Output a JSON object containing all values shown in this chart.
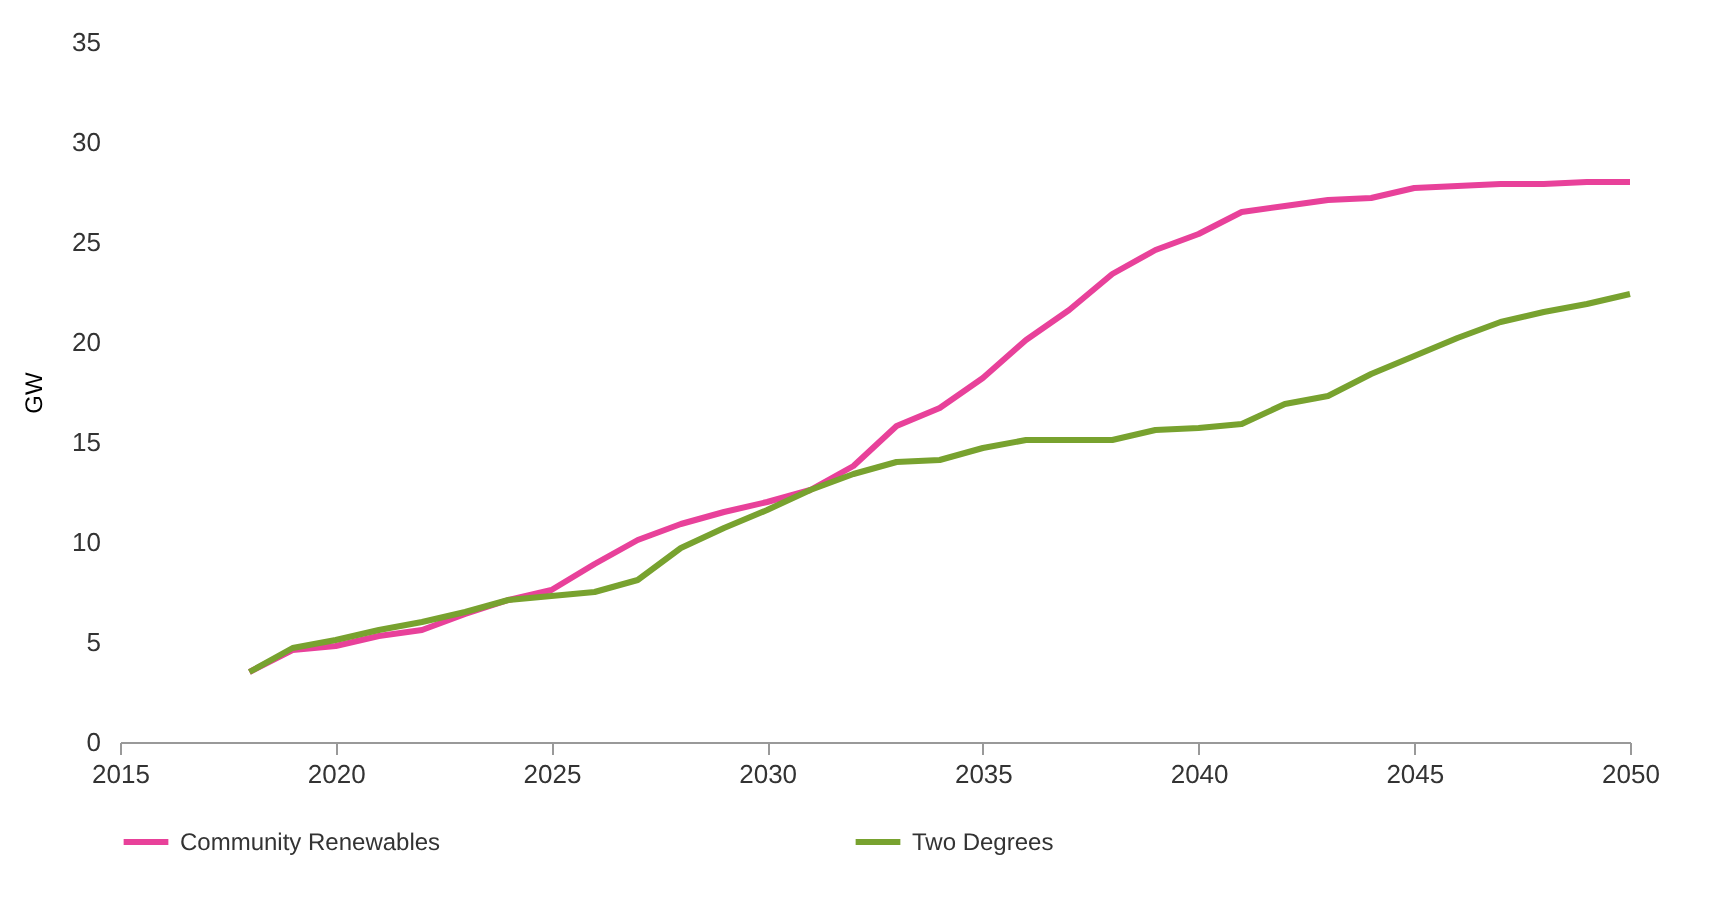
{
  "chart_data": {
    "type": "line",
    "ylabel": "GW",
    "x": [
      2018,
      2019,
      2020,
      2021,
      2022,
      2023,
      2024,
      2025,
      2026,
      2027,
      2028,
      2029,
      2030,
      2031,
      2032,
      2033,
      2034,
      2035,
      2036,
      2037,
      2038,
      2039,
      2040,
      2041,
      2042,
      2043,
      2044,
      2045,
      2046,
      2047,
      2048,
      2049,
      2050
    ],
    "series": [
      {
        "name": "Community Renewables",
        "color": "#e8419a",
        "values": [
          3.5,
          4.6,
          4.8,
          5.3,
          5.6,
          6.4,
          7.1,
          7.6,
          8.9,
          10.1,
          10.9,
          11.5,
          12.0,
          12.6,
          13.8,
          15.8,
          16.7,
          18.2,
          20.1,
          21.6,
          23.4,
          24.6,
          25.4,
          26.5,
          26.8,
          27.1,
          27.2,
          27.7,
          27.8,
          27.9,
          27.9,
          28.0,
          28.0
        ]
      },
      {
        "name": "Two Degrees",
        "color": "#78a22f",
        "values": [
          3.5,
          4.7,
          5.1,
          5.6,
          6.0,
          6.5,
          7.1,
          7.3,
          7.5,
          8.1,
          9.7,
          10.7,
          11.6,
          12.6,
          13.4,
          14.0,
          14.1,
          14.7,
          15.1,
          15.1,
          15.1,
          15.6,
          15.7,
          15.9,
          16.9,
          17.3,
          18.4,
          19.3,
          20.2,
          21.0,
          21.5,
          21.9,
          22.4
        ]
      }
    ],
    "xlim": [
      2015,
      2050
    ],
    "xticks": [
      2015,
      2020,
      2025,
      2030,
      2035,
      2040,
      2045,
      2050
    ],
    "ylim": [
      0,
      35
    ],
    "yticks": [
      0,
      5,
      10,
      15,
      20,
      25,
      30,
      35
    ],
    "grid": false,
    "legend": "bottom",
    "marker": "none",
    "line_style": "solid"
  }
}
